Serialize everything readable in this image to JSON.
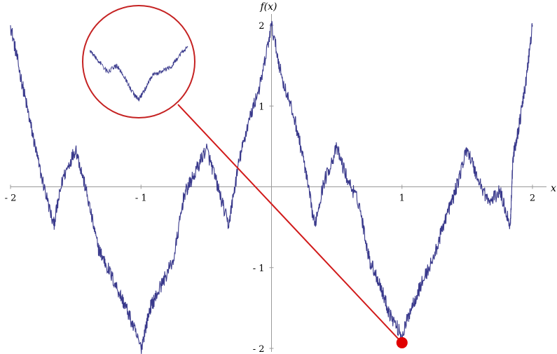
{
  "chart_data": {
    "type": "line",
    "title": "",
    "xlabel": "x",
    "ylabel": "f(x)",
    "xlim": [
      -2,
      2
    ],
    "ylim": [
      -2,
      2
    ],
    "x_ticks": [
      -2,
      -1,
      1,
      2
    ],
    "y_ticks": [
      -2,
      -1,
      1,
      2
    ],
    "x_tick_labels": [
      "- 2",
      "- 1",
      "1",
      "2"
    ],
    "y_tick_labels": [
      "- 2",
      "- 1",
      "1",
      "2"
    ],
    "grid": false,
    "legend": "none",
    "series": [
      {
        "style": "line",
        "color": "#3a3a8c",
        "points": [
          [
            -2.0,
            2.0
          ],
          [
            -1.92,
            1.35
          ],
          [
            -1.85,
            0.8
          ],
          [
            -1.78,
            0.25
          ],
          [
            -1.67,
            -0.48
          ],
          [
            -1.6,
            0.1
          ],
          [
            -1.5,
            0.48
          ],
          [
            -1.42,
            -0.05
          ],
          [
            -1.33,
            -0.75
          ],
          [
            -1.27,
            -0.95
          ],
          [
            -1.17,
            -1.3
          ],
          [
            -1.1,
            -1.55
          ],
          [
            -1.0,
            -2.0
          ],
          [
            -0.93,
            -1.5
          ],
          [
            -0.87,
            -1.3
          ],
          [
            -0.75,
            -0.9
          ],
          [
            -0.67,
            -0.1
          ],
          [
            -0.6,
            0.12
          ],
          [
            -0.5,
            0.48
          ],
          [
            -0.42,
            0.05
          ],
          [
            -0.33,
            -0.48
          ],
          [
            -0.25,
            0.3
          ],
          [
            -0.18,
            0.78
          ],
          [
            -0.08,
            1.3
          ],
          [
            0.0,
            2.0
          ],
          [
            0.08,
            1.35
          ],
          [
            0.18,
            0.82
          ],
          [
            0.25,
            0.3
          ],
          [
            0.33,
            -0.48
          ],
          [
            0.4,
            0.05
          ],
          [
            0.5,
            0.48
          ],
          [
            0.58,
            0.1
          ],
          [
            0.67,
            -0.2
          ],
          [
            0.75,
            -0.9
          ],
          [
            0.83,
            -1.2
          ],
          [
            0.9,
            -1.55
          ],
          [
            1.0,
            -1.85
          ],
          [
            1.07,
            -1.5
          ],
          [
            1.15,
            -1.2
          ],
          [
            1.25,
            -0.85
          ],
          [
            1.33,
            -0.4
          ],
          [
            1.4,
            -0.1
          ],
          [
            1.5,
            0.48
          ],
          [
            1.58,
            0.1
          ],
          [
            1.67,
            -0.2
          ],
          [
            1.75,
            -0.05
          ],
          [
            1.83,
            -0.48
          ],
          [
            1.85,
            0.35
          ],
          [
            1.9,
            0.78
          ],
          [
            1.95,
            1.3
          ],
          [
            2.0,
            2.0
          ]
        ]
      }
    ],
    "annotations": [
      {
        "type": "magnifier-callout",
        "point": [
          1.0,
          -1.93
        ],
        "note_color": "#d11a1a"
      }
    ]
  },
  "inset": {
    "border_color": "#c52222",
    "line_color": "#3a3a8c",
    "points": [
      [
        0.0,
        0.2
      ],
      [
        0.08,
        0.35
      ],
      [
        0.18,
        0.55
      ],
      [
        0.28,
        0.45
      ],
      [
        0.36,
        0.65
      ],
      [
        0.45,
        0.92
      ],
      [
        0.5,
        1.0
      ],
      [
        0.56,
        0.85
      ],
      [
        0.64,
        0.6
      ],
      [
        0.74,
        0.55
      ],
      [
        0.84,
        0.45
      ],
      [
        0.93,
        0.25
      ],
      [
        1.0,
        0.15
      ]
    ]
  }
}
